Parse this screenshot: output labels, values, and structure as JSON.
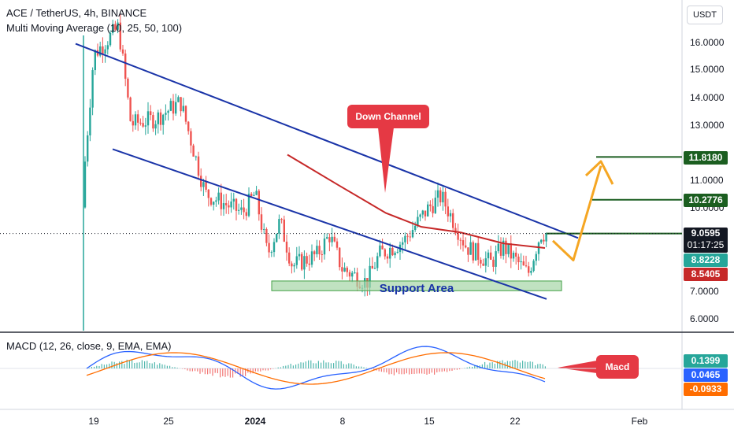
{
  "header": {
    "title": "ACE / TetherUS, 4h, BINANCE",
    "indicator": "Multi Moving Average (10, 25, 50, 100)",
    "macd_label": "MACD (12, 26, close, 9, EMA, EMA)",
    "currency_button": "USDT"
  },
  "annotations": {
    "down_channel": "Down Channel",
    "support_area": "Support Area",
    "macd": "Macd"
  },
  "price_tags": {
    "current": "9.0595",
    "countdown": "01:17:25",
    "ma_green": "8.8228",
    "ma_red": "8.5405",
    "target_high": "11.8180",
    "target_mid": "10.2776"
  },
  "macd_tags": {
    "histogram": "0.1399",
    "macd": "0.0465",
    "signal": "-0.0933"
  },
  "colors": {
    "bull": "#26a69a",
    "bear": "#ef5350",
    "channel": "#1a34a8",
    "ma": "#c62828",
    "target": "#1b5e20",
    "arrow": "#f5a623",
    "callout": "#e53944",
    "macd_line": "#2962ff",
    "signal_line": "#ff6d00"
  },
  "chart_data": {
    "type": "candlestick",
    "title": "ACE / TetherUS, 4h, BINANCE",
    "price_axis": {
      "ticks": [
        "16.0000",
        "15.0000",
        "14.0000",
        "13.0000",
        "11.0000",
        "10.0000",
        "7.0000",
        "6.0000"
      ],
      "range": [
        5.5,
        17.5
      ]
    },
    "date_axis": {
      "ticks": [
        "19",
        "25",
        "2024",
        "8",
        "15",
        "22",
        "Feb"
      ]
    },
    "trend_points": [
      {
        "date": "Dec 18",
        "price": 10.0
      },
      {
        "date": "Dec 19",
        "price": 15.5
      },
      {
        "date": "Dec 21",
        "price": 16.5
      },
      {
        "date": "Dec 22",
        "price": 13.0
      },
      {
        "date": "Dec 24",
        "price": 13.2
      },
      {
        "date": "Dec 26",
        "price": 13.8
      },
      {
        "date": "Dec 28",
        "price": 10.5
      },
      {
        "date": "Dec 31",
        "price": 9.8
      },
      {
        "date": "Jan 1",
        "price": 10.5
      },
      {
        "date": "Jan 2",
        "price": 8.3
      },
      {
        "date": "Jan 3",
        "price": 9.5
      },
      {
        "date": "Jan 4",
        "price": 7.9
      },
      {
        "date": "Jan 6",
        "price": 8.3
      },
      {
        "date": "Jan 7",
        "price": 9.0
      },
      {
        "date": "Jan 8",
        "price": 7.8
      },
      {
        "date": "Jan 10",
        "price": 7.3
      },
      {
        "date": "Jan 11",
        "price": 8.3
      },
      {
        "date": "Jan 13",
        "price": 8.8
      },
      {
        "date": "Jan 15",
        "price": 10.0
      },
      {
        "date": "Jan 16",
        "price": 10.4
      },
      {
        "date": "Jan 18",
        "price": 8.6
      },
      {
        "date": "Jan 20",
        "price": 8.0
      },
      {
        "date": "Jan 21",
        "price": 8.6
      },
      {
        "date": "Jan 23",
        "price": 7.6
      },
      {
        "date": "Jan 24",
        "price": 9.06
      }
    ],
    "channel_upper": [
      {
        "date": "Dec 18",
        "price": 15.9
      },
      {
        "date": "Jan 25",
        "price": 8.9
      }
    ],
    "channel_lower": [
      {
        "date": "Dec 20",
        "price": 12.1
      },
      {
        "date": "Jan 24",
        "price": 6.7
      }
    ],
    "moving_average": [
      {
        "date": "Jan 2",
        "price": 11.9
      },
      {
        "date": "Jan 6",
        "price": 10.8
      },
      {
        "date": "Jan 10",
        "price": 9.8
      },
      {
        "date": "Jan 13",
        "price": 9.3
      },
      {
        "date": "Jan 16",
        "price": 9.1
      },
      {
        "date": "Jan 20",
        "price": 8.7
      },
      {
        "date": "Jan 24",
        "price": 8.54
      }
    ],
    "support_zone": {
      "from": "Jan 3",
      "to": "Jan 24",
      "low": 7.0,
      "high": 7.35
    },
    "target_levels": [
      11.818,
      10.2776
    ],
    "projection": [
      {
        "date": "Jan 25",
        "price": 8.8
      },
      {
        "date": "Jan 26",
        "price": 8.1
      },
      {
        "date": "Jan 28",
        "price": 11.5
      }
    ],
    "macd_panel": {
      "histogram_last": 0.1399,
      "macd_last": 0.0465,
      "signal_last": -0.0933
    }
  }
}
